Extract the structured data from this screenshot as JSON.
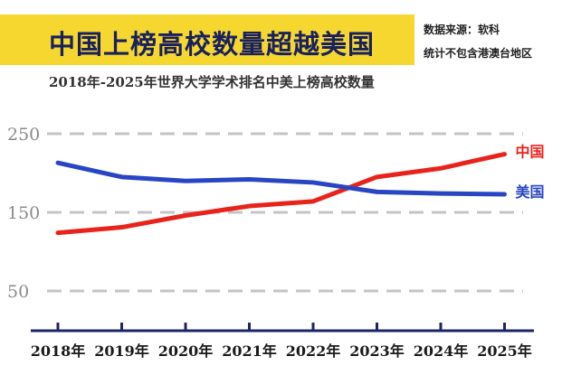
{
  "header": {
    "title": "中国上榜高校数量超越美国",
    "source_note": "数据来源：软科",
    "scope_note": "统计不包含港澳台地区"
  },
  "chart_data": {
    "type": "line",
    "title": "2018年-2025年世界大学学术排名中美上榜高校数量",
    "categories": [
      "2018年",
      "2019年",
      "2020年",
      "2021年",
      "2022年",
      "2023年",
      "2024年",
      "2025年"
    ],
    "series": [
      {
        "name": "中国",
        "color": "#e8231c",
        "values": [
          124,
          131,
          146,
          158,
          164,
          195,
          206,
          224
        ]
      },
      {
        "name": "美国",
        "color": "#2846c4",
        "values": [
          213,
          195,
          190,
          192,
          188,
          176,
          174,
          173
        ]
      }
    ],
    "yticks": [
      50,
      150,
      250
    ],
    "ylim": [
      0,
      260
    ],
    "grid": true,
    "grid_style": "dashed",
    "legend": "inline-right",
    "colors": {
      "axis": "#1f2466",
      "grid": "#c4c4c4",
      "tick_label": "#8a8a8a"
    }
  }
}
